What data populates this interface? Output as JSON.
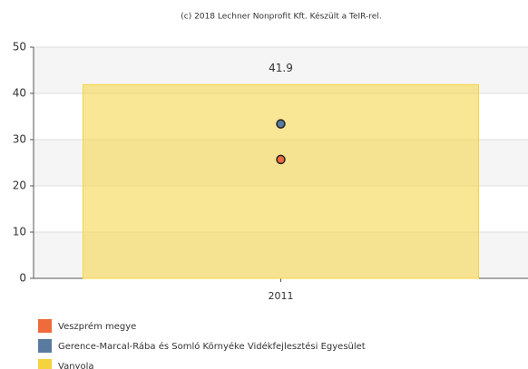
{
  "chart_data": {
    "type": "bar",
    "title": "(c) 2018 Lechner Nonprofit Kft. Készült a TeIR-rel.",
    "categories": [
      "2011"
    ],
    "series": [
      {
        "name": "Veszprém megye",
        "color": "#ee6b3b",
        "type": "scatter",
        "values": [
          25.7
        ]
      },
      {
        "name": "Gerence-Marcal-Rába és Somló Környéke Vidékfejlesztési Egyesület",
        "color": "#5a7aa0",
        "type": "scatter",
        "values": [
          33.4
        ]
      },
      {
        "name": "Vanyola",
        "color": "#f5d33f",
        "type": "bar",
        "values": [
          41.9
        ]
      }
    ],
    "ylim": [
      0,
      50
    ],
    "yticks": [
      0,
      10,
      20,
      30,
      40,
      50
    ],
    "grid": true
  }
}
